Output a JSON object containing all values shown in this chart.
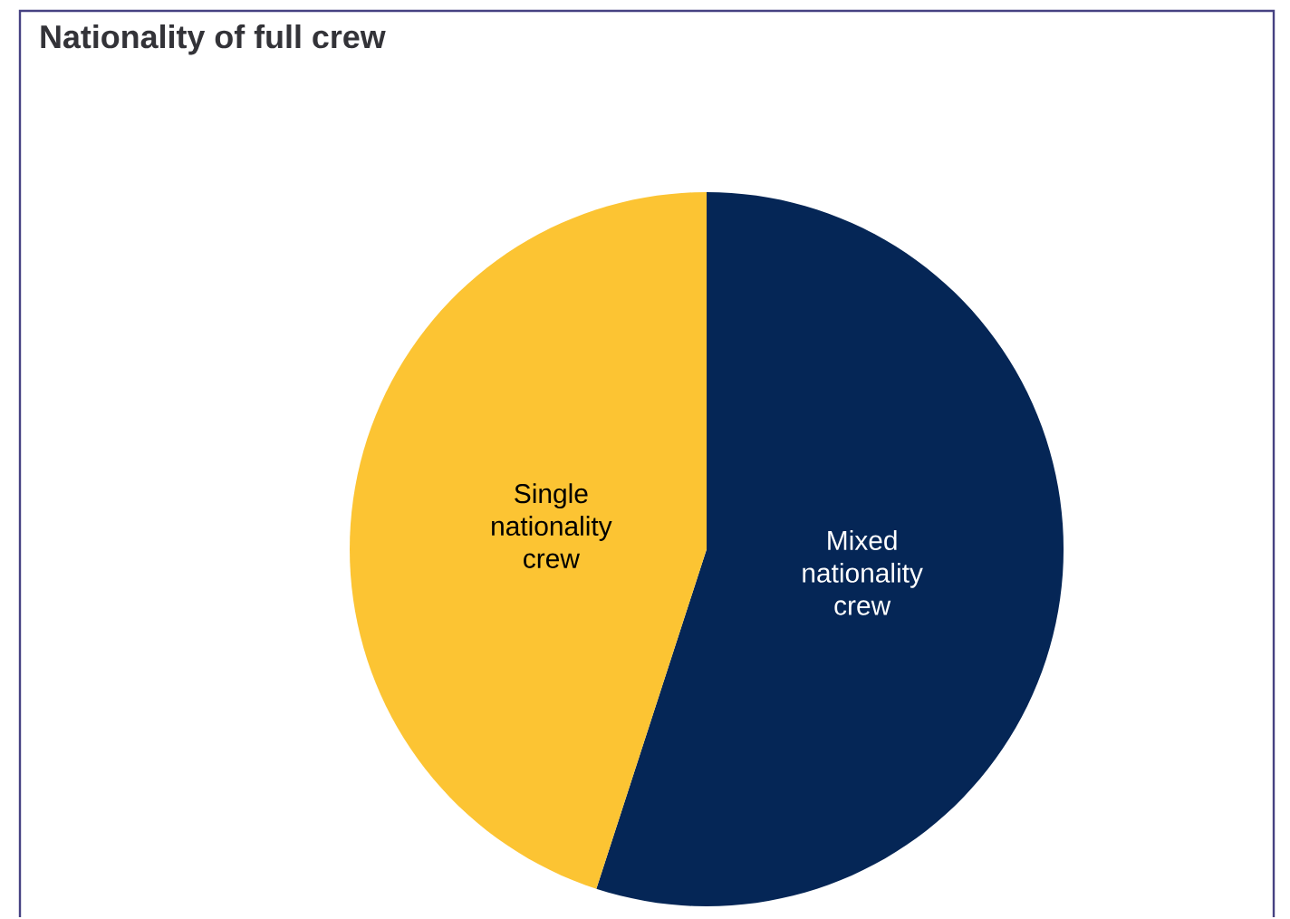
{
  "chart_data": {
    "type": "pie",
    "title": "Nationality of full crew",
    "categories": [
      "Mixed nationality crew",
      "Single nationality crew"
    ],
    "values": [
      55,
      45
    ],
    "colors": [
      "#052656",
      "#fcc433"
    ]
  }
}
